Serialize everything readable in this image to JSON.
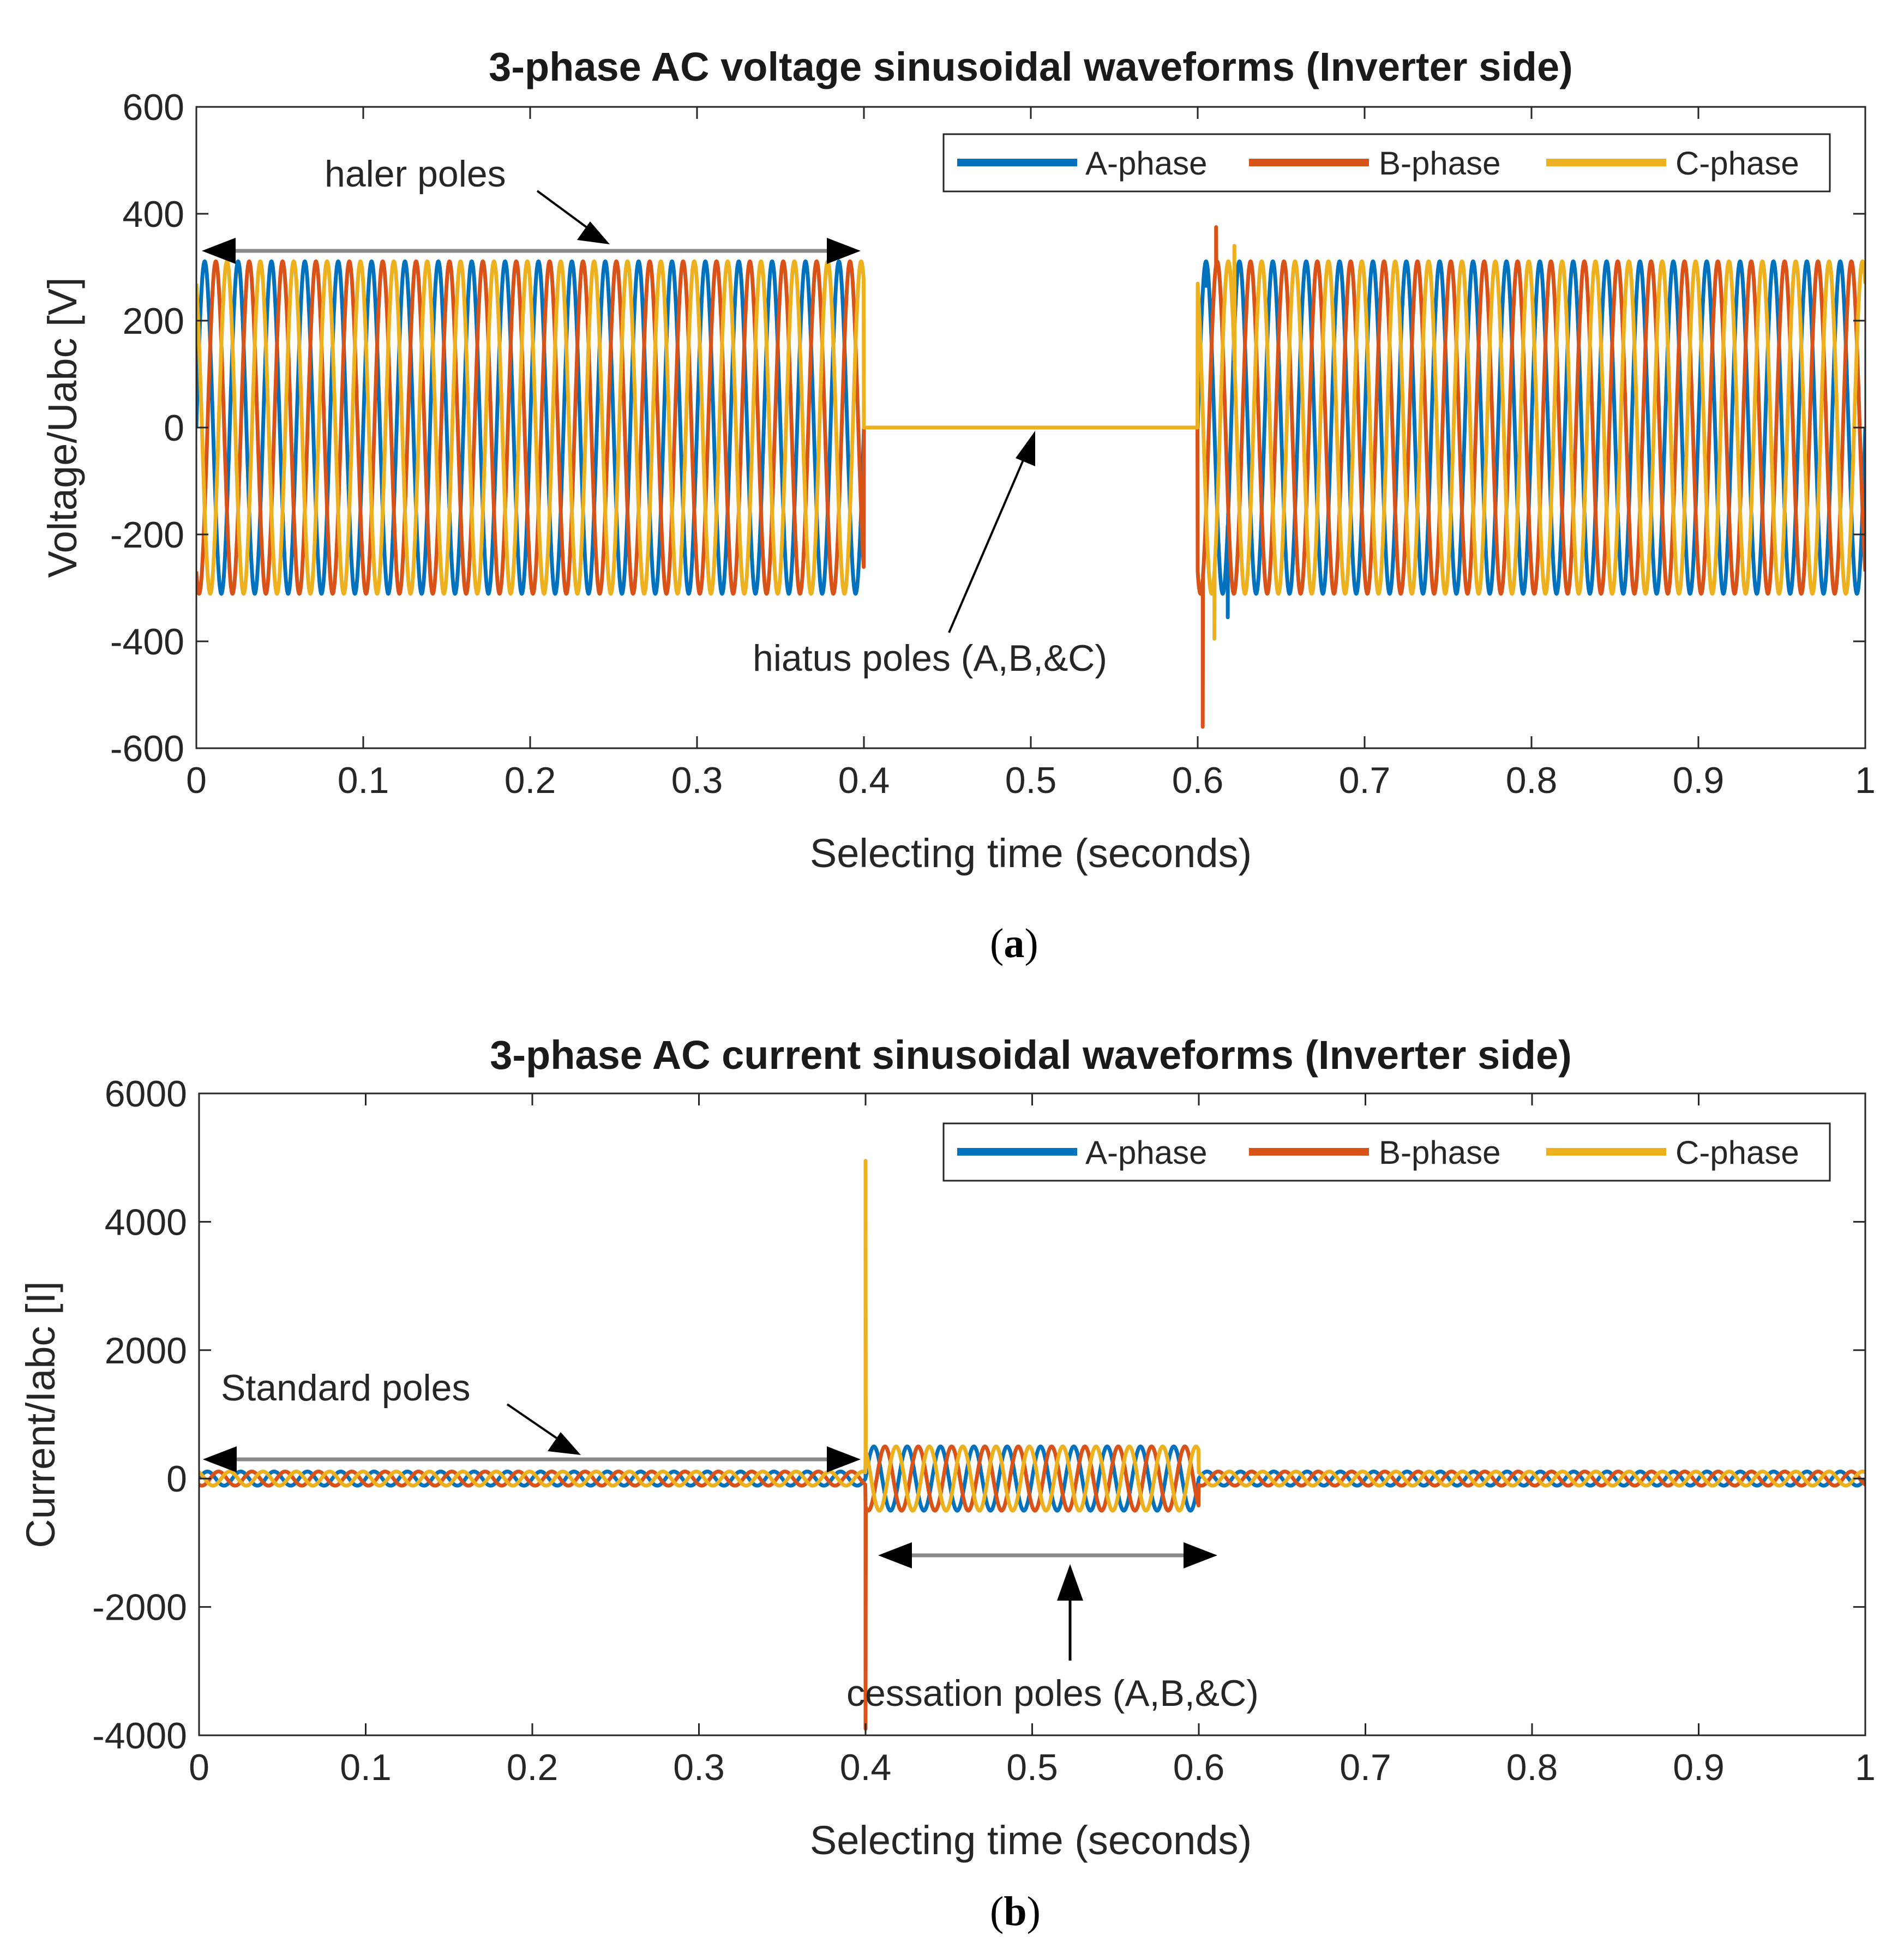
{
  "colors": {
    "a_phase": "#0072BD",
    "b_phase": "#D95319",
    "c_phase": "#EDB120",
    "annotation_arrow": "#888888",
    "arrowhead": "#000000"
  },
  "chart_data": [
    {
      "type": "line",
      "id": "a",
      "caption": "a",
      "title": "3-phase AC voltage sinusoidal waveforms (Inverter side)",
      "xlabel": "Selecting time (seconds)",
      "ylabel": "Voltage/Uabc [V]",
      "xlim": [
        0,
        1
      ],
      "ylim": [
        -600,
        600
      ],
      "xticks": [
        0,
        0.1,
        0.2,
        0.3,
        0.4,
        0.5,
        0.6,
        0.7,
        0.8,
        0.9,
        1
      ],
      "xtick_labels": [
        "0",
        "0.1",
        "0.2",
        "0.3",
        "0.4",
        "0.5",
        "0.6",
        "0.7",
        "0.8",
        "0.9",
        "1"
      ],
      "yticks": [
        -600,
        -400,
        -200,
        0,
        200,
        400,
        600
      ],
      "ytick_labels": [
        "-600",
        "-400",
        "-200",
        "0",
        "200",
        "400",
        "600"
      ],
      "legend": {
        "location": "top-right",
        "entries": [
          "A-phase",
          "B-phase",
          "C-phase"
        ]
      },
      "series": [
        {
          "name": "A-phase",
          "frequency_hz": 50,
          "phase_deg": 0,
          "segments": [
            {
              "t_start": 0,
              "t_end": 0.4,
              "amplitude": 311
            },
            {
              "t_start": 0.4,
              "t_end": 0.6,
              "amplitude": 0
            },
            {
              "t_start": 0.6,
              "t_end": 1.0,
              "amplitude": 311
            }
          ],
          "spikes": [
            {
              "t": 0.605,
              "value": 265
            },
            {
              "t": 0.618,
              "value": -355
            }
          ]
        },
        {
          "name": "B-phase",
          "frequency_hz": 50,
          "phase_deg": -120,
          "segments": [
            {
              "t_start": 0,
              "t_end": 0.4,
              "amplitude": 311
            },
            {
              "t_start": 0.4,
              "t_end": 0.6,
              "amplitude": 0
            },
            {
              "t_start": 0.6,
              "t_end": 1.0,
              "amplitude": 311
            }
          ],
          "spikes": [
            {
              "t": 0.603,
              "value": -560
            },
            {
              "t": 0.611,
              "value": 375
            }
          ]
        },
        {
          "name": "C-phase",
          "frequency_hz": 50,
          "phase_deg": 120,
          "segments": [
            {
              "t_start": 0,
              "t_end": 0.4,
              "amplitude": 311
            },
            {
              "t_start": 0.4,
              "t_end": 0.6,
              "amplitude": 0
            },
            {
              "t_start": 0.6,
              "t_end": 1.0,
              "amplitude": 311
            }
          ],
          "spikes": [
            {
              "t": 0.61,
              "value": -395
            },
            {
              "t": 0.622,
              "value": 340
            }
          ]
        }
      ],
      "annotations": [
        {
          "text": "haler poles",
          "span": [
            0,
            0.4
          ],
          "y": 330,
          "pointer_to": [
            0.245,
            335
          ]
        },
        {
          "text": "hiatus poles (A,B,&C)",
          "pointer_to": [
            0.505,
            0
          ]
        }
      ]
    },
    {
      "type": "line",
      "id": "b",
      "caption": "b",
      "title": "3-phase AC current sinusoidal waveforms (Inverter side)",
      "xlabel": "Selecting time (seconds)",
      "ylabel": "Current/Iabc [I]",
      "xlim": [
        0,
        1
      ],
      "ylim": [
        -4000,
        6000
      ],
      "xticks": [
        0,
        0.1,
        0.2,
        0.3,
        0.4,
        0.5,
        0.6,
        0.7,
        0.8,
        0.9,
        1
      ],
      "xtick_labels": [
        "0",
        "0.1",
        "0.2",
        "0.3",
        "0.4",
        "0.5",
        "0.6",
        "0.7",
        "0.8",
        "0.9",
        "1"
      ],
      "yticks": [
        -4000,
        -2000,
        0,
        2000,
        4000,
        6000
      ],
      "ytick_labels": [
        "-4000",
        "-2000",
        "0",
        "2000",
        "4000",
        "6000"
      ],
      "legend": {
        "location": "top-right",
        "entries": [
          "A-phase",
          "B-phase",
          "C-phase"
        ]
      },
      "series": [
        {
          "name": "A-phase",
          "frequency_hz": 50,
          "phase_deg": 0,
          "segments": [
            {
              "t_start": 0,
              "t_end": 0.4,
              "amplitude": 110,
              "offset": 0
            },
            {
              "t_start": 0.4,
              "t_end": 0.6,
              "amplitude": 500,
              "offset": 0
            },
            {
              "t_start": 0.6,
              "t_end": 1.0,
              "amplitude": 110,
              "offset": 0
            }
          ],
          "spikes": [
            {
              "t": 0.4,
              "value": 350
            }
          ]
        },
        {
          "name": "B-phase",
          "frequency_hz": 50,
          "phase_deg": -120,
          "segments": [
            {
              "t_start": 0,
              "t_end": 0.4,
              "amplitude": 110,
              "offset": 0
            },
            {
              "t_start": 0.4,
              "t_end": 0.6,
              "amplitude": 500,
              "offset": 0
            },
            {
              "t_start": 0.6,
              "t_end": 1.0,
              "amplitude": 110,
              "offset": 0
            }
          ],
          "spikes": [
            {
              "t": 0.4,
              "value": -3900
            }
          ]
        },
        {
          "name": "C-phase",
          "frequency_hz": 50,
          "phase_deg": 120,
          "segments": [
            {
              "t_start": 0,
              "t_end": 0.4,
              "amplitude": 110,
              "offset": 0
            },
            {
              "t_start": 0.4,
              "t_end": 0.6,
              "amplitude": 500,
              "offset": 0
            },
            {
              "t_start": 0.6,
              "t_end": 1.0,
              "amplitude": 110,
              "offset": 0
            }
          ],
          "spikes": [
            {
              "t": 0.4,
              "value": 4950
            }
          ]
        }
      ],
      "annotations": [
        {
          "text": "Standard poles",
          "span": [
            0,
            0.4
          ],
          "y": 350,
          "pointer_to": [
            0.23,
            400
          ]
        },
        {
          "text": "cessation poles (A,B,&C)",
          "span": [
            0.405,
            0.61
          ],
          "y": -1100,
          "pointer_to": [
            0.52,
            -1200
          ]
        }
      ]
    }
  ]
}
